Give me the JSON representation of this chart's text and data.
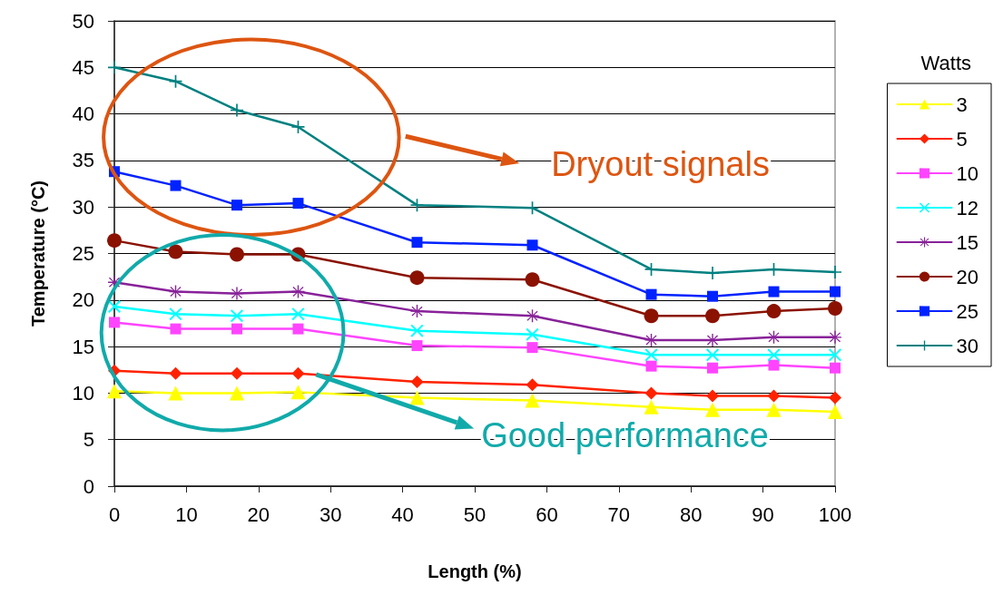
{
  "chart_data": {
    "type": "line",
    "xlabel": "Length (%)",
    "ylabel": "Temperature (°C)",
    "legend_title": "Watts",
    "x": [
      0,
      8.5,
      17,
      25.5,
      42,
      58,
      74.5,
      83,
      91.5,
      100
    ],
    "xlim": [
      0,
      100
    ],
    "xticks": [
      0,
      10,
      20,
      30,
      40,
      50,
      60,
      70,
      80,
      90,
      100
    ],
    "ylim": [
      0,
      50
    ],
    "yticks": [
      0,
      5,
      10,
      15,
      20,
      25,
      30,
      35,
      40,
      45,
      50
    ],
    "grid": "y",
    "legend": "right",
    "line_style": "solid",
    "series": [
      {
        "name": "3",
        "color": "#ffff00",
        "marker": "triangle",
        "values": [
          10.2,
          10.0,
          10.0,
          10.1,
          9.5,
          9.2,
          8.5,
          8.2,
          8.2,
          8.0
        ]
      },
      {
        "name": "5",
        "color": "#ff2200",
        "marker": "diamond",
        "values": [
          12.4,
          12.1,
          12.1,
          12.1,
          11.2,
          10.9,
          10.0,
          9.7,
          9.7,
          9.5
        ]
      },
      {
        "name": "10",
        "color": "#ff44ff",
        "marker": "square",
        "values": [
          17.6,
          16.9,
          16.9,
          16.9,
          15.1,
          14.9,
          12.9,
          12.7,
          13.0,
          12.7
        ]
      },
      {
        "name": "12",
        "color": "#00ffff",
        "marker": "cross",
        "values": [
          19.3,
          18.5,
          18.3,
          18.5,
          16.7,
          16.3,
          14.1,
          14.1,
          14.1,
          14.1
        ]
      },
      {
        "name": "15",
        "color": "#882299",
        "marker": "star",
        "values": [
          21.9,
          20.9,
          20.7,
          20.9,
          18.8,
          18.3,
          15.7,
          15.7,
          16.0,
          16.0
        ]
      },
      {
        "name": "20",
        "color": "#8b1200",
        "marker": "circle",
        "values": [
          26.4,
          25.2,
          24.9,
          24.9,
          22.4,
          22.2,
          18.3,
          18.3,
          18.8,
          19.1
        ]
      },
      {
        "name": "25",
        "color": "#0022ff",
        "marker": "square",
        "values": [
          33.8,
          32.3,
          30.2,
          30.4,
          26.2,
          25.9,
          20.6,
          20.4,
          20.9,
          20.9
        ]
      },
      {
        "name": "30",
        "color": "#008080",
        "marker": "plus",
        "values": [
          45.0,
          43.5,
          40.4,
          38.6,
          30.2,
          29.9,
          23.3,
          22.9,
          23.3,
          23.0
        ]
      }
    ],
    "annotations": [
      "Dryout signals",
      {
        "text": "Good performance",
        "x": 28,
        "y": 12
      }
    ]
  }
}
